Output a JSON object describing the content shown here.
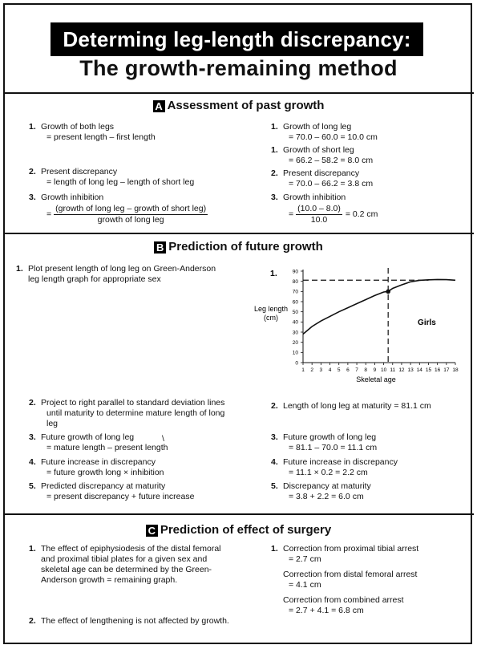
{
  "title": {
    "line1": "Determing leg-length discrepancy:",
    "line2": "The growth-remaining method"
  },
  "sectionA": {
    "badge": "A",
    "heading": "Assessment of past growth",
    "left": [
      {
        "num": "1.",
        "label": "Growth of both legs",
        "detail": "= present length – first length"
      },
      {
        "num": "2.",
        "label": "Present discrepancy",
        "detail": "= length of long leg – length of short leg"
      },
      {
        "num": "3.",
        "label": "Growth inhibition",
        "eq": "=",
        "numerator": "(growth of long leg – growth of short leg)",
        "denominator": "growth of long leg"
      }
    ],
    "right": [
      {
        "num": "1.",
        "label": "Growth of long leg",
        "detail": "= 70.0 – 60.0 = 10.0 cm"
      },
      {
        "num": "1.",
        "label": "Growth of short leg",
        "detail": "= 66.2 – 58.2 = 8.0 cm"
      },
      {
        "num": "2.",
        "label": "Present discrepancy",
        "detail": "= 70.0 – 66.2 = 3.8 cm"
      },
      {
        "num": "3.",
        "label": "Growth inhibition",
        "eq": "=",
        "numerator": "(10.0 – 8.0)",
        "denominator": "10.0",
        "result": "= 0.2 cm"
      }
    ]
  },
  "sectionB": {
    "badge": "B",
    "heading": "Prediction of future growth",
    "left": [
      {
        "num": "1.",
        "label": "Plot present length of long leg on Green-Anderson",
        "detail": "leg length graph for appropriate sex"
      },
      {
        "num": "2.",
        "label": "Project to right parallel to standard deviation lines",
        "detail": "until maturity to determine mature length of long",
        "detail2": "leg"
      },
      {
        "num": "3.",
        "label": "Future growth of long leg",
        "detail": "= mature length – present length"
      },
      {
        "num": "4.",
        "label": "Future increase in discrepancy",
        "detail": "= future growth long × inhibition"
      },
      {
        "num": "5.",
        "label": "Predicted discrepancy at maturity",
        "detail": "= present discrepancy + future increase"
      }
    ],
    "right": [
      {
        "num": "2.",
        "label": "Length of long leg at maturity = 81.1 cm"
      },
      {
        "num": "3.",
        "label": "Future growth of long leg",
        "detail": "= 81.1 – 70.0 = 11.1 cm"
      },
      {
        "num": "4.",
        "label": "Future increase in discrepancy",
        "detail": "= 11.1 × 0.2 = 2.2 cm"
      },
      {
        "num": "5.",
        "label": "Discrepancy at maturity",
        "detail": "= 3.8 + 2.2 = 6.0 cm"
      }
    ],
    "chart_num": "1.",
    "stray_mark": "\\"
  },
  "chart_data": {
    "type": "line",
    "title": "",
    "xlabel": "Skeletal age",
    "ylabel": "Leg length (cm)",
    "annotation": "Girls",
    "x_ticks": [
      "1",
      "2",
      "3",
      "4",
      "5",
      "6",
      "7",
      "8",
      "9",
      "10",
      "11",
      "12",
      "13",
      "14",
      "15",
      "16",
      "17",
      "18"
    ],
    "y_ticks": [
      "0",
      "10",
      "20",
      "30",
      "40",
      "50",
      "60",
      "70",
      "80",
      "90"
    ],
    "xlim": [
      1,
      18
    ],
    "ylim": [
      0,
      90
    ],
    "grid": false,
    "series": [
      {
        "x": [
          1,
          2,
          3,
          4,
          5,
          6,
          7,
          8,
          9,
          10,
          10.5,
          11,
          12,
          13,
          14,
          15,
          16,
          17,
          18
        ],
        "y": [
          28,
          35.5,
          41,
          45.5,
          50,
          54,
          58,
          62,
          66,
          69.5,
          70,
          73,
          76.5,
          79.5,
          81,
          81.5,
          81.8,
          81.6,
          81.1
        ]
      }
    ],
    "marker": {
      "x": 10.5,
      "y": 70
    },
    "maturity_line_y": 81.1
  },
  "sectionC": {
    "badge": "C",
    "heading": "Prediction of effect of surgery",
    "left": [
      {
        "num": "1.",
        "lines": [
          "The effect of epiphysiodesis of the distal femoral",
          "and proximal tibial plates for a given sex and",
          "skeletal age can be determined by the Green-",
          "Anderson growth = remaining graph."
        ]
      },
      {
        "num": "2.",
        "lines": [
          "The effect of lengthening is not affected by growth."
        ]
      }
    ],
    "right": {
      "num": "1.",
      "items": [
        {
          "label": "Correction from proximal tibial arrest",
          "detail": "= 2.7 cm"
        },
        {
          "label": "Correction from distal femoral arrest",
          "detail": "= 4.1 cm"
        },
        {
          "label": "Correction from combined arrest",
          "detail": "= 2.7 + 4.1 = 6.8 cm"
        }
      ]
    }
  }
}
